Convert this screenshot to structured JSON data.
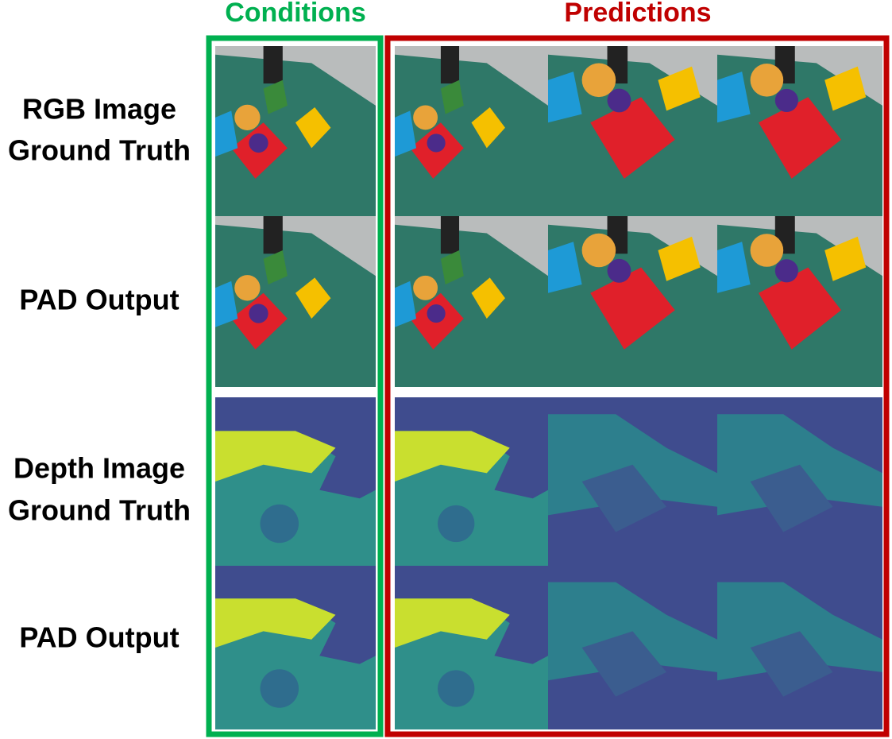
{
  "header": {
    "conditions": "Conditions",
    "predictions": "Predictions"
  },
  "rows": [
    {
      "label_lines": [
        "RGB Image",
        "Ground Truth"
      ]
    },
    {
      "label_lines": [
        "PAD Output"
      ]
    },
    {
      "label_lines": [
        "Depth Image",
        "Ground Truth"
      ]
    },
    {
      "label_lines": [
        "PAD Output"
      ]
    }
  ]
}
